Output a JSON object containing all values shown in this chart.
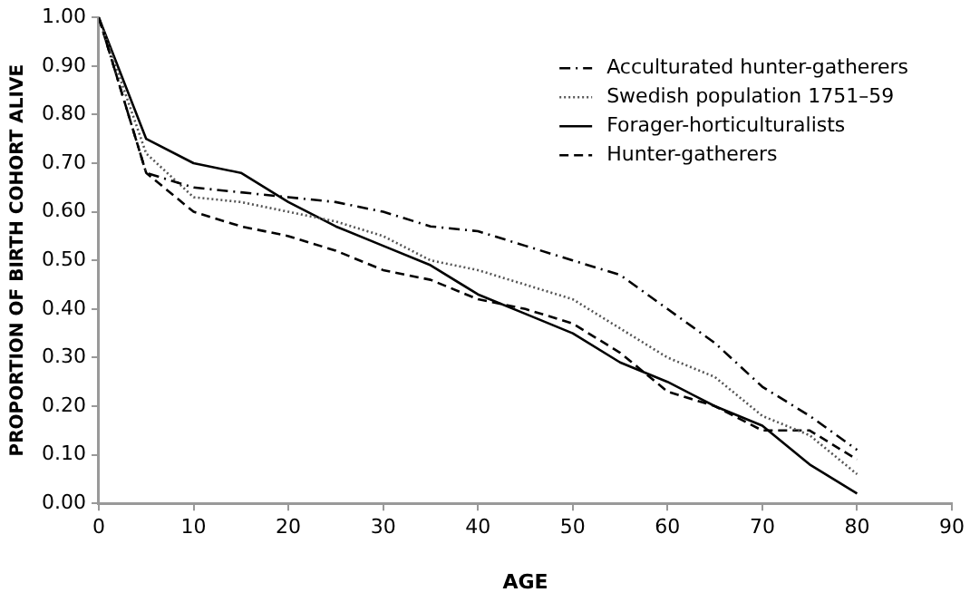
{
  "chart_data": {
    "type": "line",
    "xlabel": "AGE",
    "ylabel": "PROPORTION OF BIRTH COHORT ALIVE",
    "x": [
      0,
      5,
      10,
      15,
      20,
      25,
      30,
      35,
      40,
      45,
      50,
      55,
      60,
      65,
      70,
      75,
      80
    ],
    "xlim": [
      0,
      90
    ],
    "xticks": [
      0,
      10,
      20,
      30,
      40,
      50,
      60,
      70,
      80,
      90
    ],
    "ylim": [
      0,
      1
    ],
    "yticks": [
      {
        "value": 0,
        "label": "0.00"
      },
      {
        "value": 0.1,
        "label": "0.10"
      },
      {
        "value": 0.2,
        "label": "0.20"
      },
      {
        "value": 0.3,
        "label": "0.30"
      },
      {
        "value": 0.4,
        "label": "0.40"
      },
      {
        "value": 0.5,
        "label": "0.50"
      },
      {
        "value": 0.6,
        "label": "0.60"
      },
      {
        "value": 0.7,
        "label": "0.70"
      },
      {
        "value": 0.8,
        "label": "0.80"
      },
      {
        "value": 0.9,
        "label": "0.90"
      },
      {
        "value": 1,
        "label": "1.00"
      }
    ],
    "grid": false,
    "legend": "top right",
    "marker": "none",
    "series": [
      {
        "name": "Acculturated hunter-gatherers",
        "color": "#000000",
        "line_style": "dashdot",
        "values": [
          1.0,
          0.68,
          0.65,
          0.64,
          0.63,
          0.62,
          0.6,
          0.57,
          0.56,
          0.53,
          0.5,
          0.47,
          0.4,
          0.33,
          0.24,
          0.18,
          0.11
        ]
      },
      {
        "name": "Swedish population 1751–59",
        "color": "#555555",
        "line_style": "dotted",
        "values": [
          1.0,
          0.72,
          0.63,
          0.62,
          0.6,
          0.58,
          0.55,
          0.5,
          0.48,
          0.45,
          0.42,
          0.36,
          0.3,
          0.26,
          0.18,
          0.14,
          0.06
        ]
      },
      {
        "name": "Forager-horticulturalists",
        "color": "#000000",
        "line_style": "solid",
        "values": [
          1.0,
          0.75,
          0.7,
          0.68,
          0.62,
          0.57,
          0.53,
          0.49,
          0.43,
          0.39,
          0.35,
          0.29,
          0.25,
          0.2,
          0.16,
          0.08,
          0.02
        ]
      },
      {
        "name": "Hunter-gatherers",
        "color": "#000000",
        "line_style": "dashed",
        "values": [
          1.0,
          0.68,
          0.6,
          0.57,
          0.55,
          0.52,
          0.48,
          0.46,
          0.42,
          0.4,
          0.37,
          0.31,
          0.23,
          0.2,
          0.15,
          0.15,
          0.09
        ]
      }
    ]
  }
}
